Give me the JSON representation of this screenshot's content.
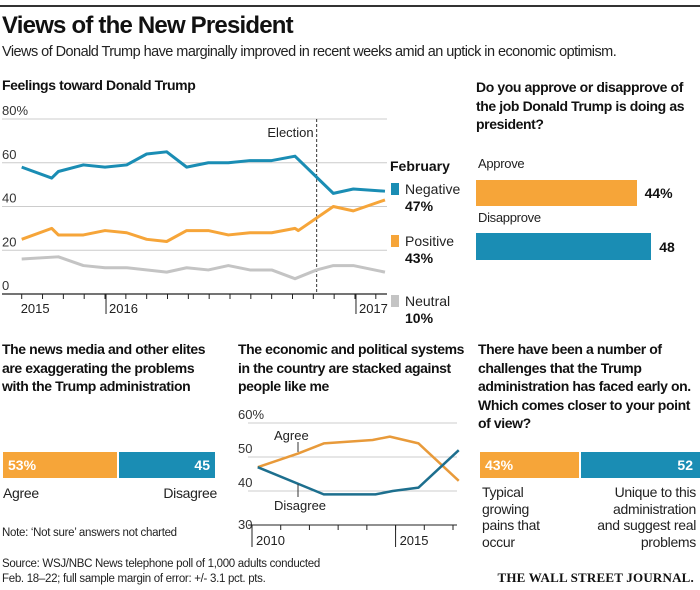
{
  "header": {
    "title": "Views of the New President",
    "subtitle": "Views of Donald Trump have marginally improved in recent weeks amid an uptick in economic optimism."
  },
  "colors": {
    "orange": "#f6a539",
    "blue": "#1a8db4",
    "gray": "#c4c4c4",
    "dark_blue": "#1d6f8e",
    "dark_orange": "#e89a3a"
  },
  "chart_data": [
    {
      "type": "line",
      "title": "Feelings toward Donald Trump",
      "ylim": [
        0,
        80
      ],
      "yticks": [
        "80%",
        "60",
        "40",
        "20",
        "0"
      ],
      "ytick_values": [
        80,
        60,
        40,
        20,
        0
      ],
      "x_labels": [
        {
          "label": "2015",
          "x": 0
        },
        {
          "label": "2016",
          "x": 4
        },
        {
          "label": "2017",
          "x": 16
        }
      ],
      "x_unit": "poll sequence",
      "grid": true,
      "annotation": {
        "label": "Election",
        "x": 14.16
      },
      "legend_title": "February",
      "legend_placement": "right",
      "series": [
        {
          "name": "Negative",
          "final": "47%",
          "color": "#1a8db4",
          "x": [
            0,
            1.44,
            1.76,
            2.96,
            4,
            5.04,
            6,
            6.96,
            7.92,
            8.96,
            9.92,
            10.96,
            12,
            13.12,
            14.96,
            15.92,
            17.44
          ],
          "values": [
            58,
            53,
            56,
            59,
            58,
            59,
            64,
            65,
            58,
            60,
            60,
            61,
            61,
            63,
            46,
            48,
            47
          ]
        },
        {
          "name": "Positive",
          "final": "43%",
          "color": "#f6a539",
          "x": [
            0,
            1.44,
            1.76,
            2.96,
            4,
            5.04,
            6,
            6.96,
            7.92,
            8.96,
            9.92,
            10.96,
            12,
            13.12,
            13.28,
            14.96,
            15.92,
            17.44
          ],
          "values": [
            25,
            30,
            27,
            27,
            29,
            28,
            25,
            24,
            29,
            29,
            27,
            28,
            28,
            30,
            29,
            40,
            38,
            43
          ]
        },
        {
          "name": "Neutral",
          "final": "10%",
          "color": "#c4c4c4",
          "x": [
            0,
            1.76,
            2.96,
            4,
            5.04,
            6.96,
            7.92,
            8.96,
            9.92,
            10.96,
            12,
            13.12,
            14.16,
            14.96,
            15.92,
            17.44
          ],
          "values": [
            16,
            17,
            13,
            12,
            12,
            10,
            12,
            11,
            13,
            11,
            11,
            7,
            11,
            13,
            13,
            10
          ]
        }
      ]
    },
    {
      "type": "bar",
      "title": "Do you approve or disapprove of the job Donald Trump is doing as president?",
      "categories": [
        "Approve",
        "Disapprove"
      ],
      "values": [
        44,
        48
      ],
      "value_labels": [
        "44%",
        "48"
      ]
    },
    {
      "type": "bar",
      "stacked": true,
      "title": "The news media and other elites are exaggerating the problems with the Trump administration",
      "categories": [
        "Agree",
        "Disagree"
      ],
      "values": [
        53,
        45
      ],
      "value_labels": [
        "53%",
        "45"
      ]
    },
    {
      "type": "line",
      "title": "The economic and political systems in the country are stacked against people like me",
      "ylim": [
        30,
        60
      ],
      "yticks": [
        "60%",
        "50",
        "40",
        "30"
      ],
      "ytick_values": [
        60,
        50,
        40,
        30
      ],
      "xlim": [
        2010,
        2017
      ],
      "x_labels": [
        {
          "label": "2010",
          "x": 2010
        },
        {
          "label": "2015",
          "x": 2015
        }
      ],
      "grid": true,
      "series": [
        {
          "name": "Agree",
          "color": "#e89a3a",
          "x": [
            2010.2,
            2011.6,
            2012.5,
            2014.2,
            2014.8,
            2015.8,
            2017.2
          ],
          "values": [
            47,
            51,
            54,
            55,
            56,
            54,
            43
          ]
        },
        {
          "name": "Disagree",
          "color": "#1d6f8e",
          "x": [
            2010.2,
            2012.5,
            2014.3,
            2014.9,
            2015.8,
            2017.2
          ],
          "values": [
            47,
            39,
            39,
            40,
            41,
            52
          ]
        }
      ]
    },
    {
      "type": "bar",
      "stacked": true,
      "title": "There have been a number of challenges that the Trump administration has faced early on. Which comes closer to your point of view?",
      "categories": [
        "Typical growing pains that occur",
        "Unique to this administration and suggest real problems"
      ],
      "values": [
        43,
        52
      ],
      "value_labels": [
        "43%",
        "52"
      ]
    }
  ],
  "footer": {
    "note": "Note: ‘Not sure’ answers not charted",
    "source_1": "Source: WSJ/NBC News telephone poll of 1,000 adults conducted",
    "source_2": "Feb. 18–22; full sample margin of error: +/- 3.1 pct. pts.",
    "logo": "THE WALL STREET JOURNAL."
  }
}
